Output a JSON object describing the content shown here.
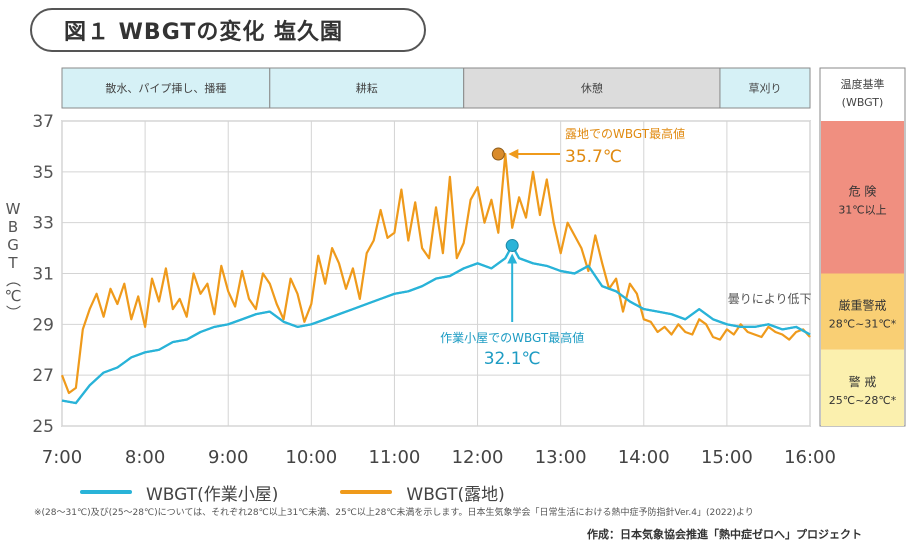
{
  "title": "図１ WBGTの変化 塩久園",
  "chart_data": {
    "type": "line",
    "title": "図１ WBGTの変化 塩久園",
    "ylabel": "WBGT（℃）",
    "xlabel": "",
    "xlim": [
      "7:00",
      "16:00"
    ],
    "ylim": [
      25,
      37
    ],
    "y_ticks": [
      25,
      27,
      29,
      31,
      33,
      35,
      37
    ],
    "x_ticks": [
      "7:00",
      "8:00",
      "9:00",
      "10:00",
      "11:00",
      "12:00",
      "13:00",
      "14:00",
      "15:00",
      "16:00"
    ],
    "grid": true,
    "legend_position": "bottom",
    "activities": [
      {
        "label": "散水、パイプ挿し、播種",
        "start": "7:00",
        "end": "9:30",
        "color": "#d6f1f6"
      },
      {
        "label": "耕耘",
        "start": "9:30",
        "end": "11:50",
        "color": "#d6f1f6"
      },
      {
        "label": "休憩",
        "start": "11:50",
        "end": "14:55",
        "color": "#dcdcdc"
      },
      {
        "label": "草刈り",
        "start": "14:55",
        "end": "16:00",
        "color": "#d6f1f6"
      }
    ],
    "criteria": {
      "header": "温度基準\n(WBGT)",
      "bands": [
        {
          "label": "危 険",
          "range": "31℃以上",
          "from": 31,
          "to": 37,
          "color": "#f08f80"
        },
        {
          "label": "厳重警戒",
          "range": "28℃~31℃*",
          "from": 28,
          "to": 31,
          "color": "#f9cf74"
        },
        {
          "label": "警 戒",
          "range": "25℃~28℃*",
          "from": 25,
          "to": 28,
          "color": "#fbf0ae"
        }
      ]
    },
    "series": [
      {
        "name": "WBGT(作業小屋)",
        "color": "#29b3d8",
        "x": [
          "7:00",
          "7:10",
          "7:20",
          "7:30",
          "7:40",
          "7:50",
          "8:00",
          "8:10",
          "8:20",
          "8:30",
          "8:40",
          "8:50",
          "9:00",
          "9:10",
          "9:20",
          "9:30",
          "9:40",
          "9:50",
          "10:00",
          "10:10",
          "10:20",
          "10:30",
          "10:40",
          "10:50",
          "11:00",
          "11:10",
          "11:20",
          "11:30",
          "11:40",
          "11:50",
          "12:00",
          "12:10",
          "12:20",
          "12:25",
          "12:30",
          "12:40",
          "12:50",
          "13:00",
          "13:10",
          "13:20",
          "13:30",
          "13:40",
          "13:50",
          "14:00",
          "14:10",
          "14:20",
          "14:30",
          "14:40",
          "14:50",
          "15:00",
          "15:10",
          "15:20",
          "15:30",
          "15:40",
          "15:50",
          "16:00"
        ],
        "values": [
          26.0,
          25.9,
          26.6,
          27.1,
          27.3,
          27.7,
          27.9,
          28.0,
          28.3,
          28.4,
          28.7,
          28.9,
          29.0,
          29.2,
          29.4,
          29.5,
          29.1,
          28.9,
          29.0,
          29.2,
          29.4,
          29.6,
          29.8,
          30.0,
          30.2,
          30.3,
          30.5,
          30.8,
          30.9,
          31.2,
          31.4,
          31.2,
          31.6,
          32.1,
          31.6,
          31.4,
          31.3,
          31.1,
          31.0,
          31.3,
          30.5,
          30.3,
          29.9,
          29.6,
          29.5,
          29.4,
          29.2,
          29.6,
          29.2,
          29.0,
          28.9,
          28.9,
          29.0,
          28.8,
          28.9,
          28.6
        ]
      },
      {
        "name": "WBGT(露地)",
        "color": "#ef9a1b",
        "x": [
          "7:00",
          "7:05",
          "7:10",
          "7:15",
          "7:20",
          "7:25",
          "7:30",
          "7:35",
          "7:40",
          "7:45",
          "7:50",
          "7:55",
          "8:00",
          "8:05",
          "8:10",
          "8:15",
          "8:20",
          "8:25",
          "8:30",
          "8:35",
          "8:40",
          "8:45",
          "8:50",
          "8:55",
          "9:00",
          "9:05",
          "9:10",
          "9:15",
          "9:20",
          "9:25",
          "9:30",
          "9:35",
          "9:40",
          "9:45",
          "9:50",
          "9:55",
          "10:00",
          "10:05",
          "10:10",
          "10:15",
          "10:20",
          "10:25",
          "10:30",
          "10:35",
          "10:40",
          "10:45",
          "10:50",
          "10:55",
          "11:00",
          "11:05",
          "11:10",
          "11:15",
          "11:20",
          "11:25",
          "11:30",
          "11:35",
          "11:40",
          "11:45",
          "11:50",
          "11:55",
          "12:00",
          "12:05",
          "12:10",
          "12:15",
          "12:20",
          "12:25",
          "12:30",
          "12:35",
          "12:40",
          "12:45",
          "12:50",
          "12:55",
          "13:00",
          "13:05",
          "13:10",
          "13:15",
          "13:20",
          "13:25",
          "13:30",
          "13:35",
          "13:40",
          "13:45",
          "13:50",
          "13:55",
          "14:00",
          "14:05",
          "14:10",
          "14:15",
          "14:20",
          "14:25",
          "14:30",
          "14:35",
          "14:40",
          "14:45",
          "14:50",
          "14:55",
          "15:00",
          "15:05",
          "15:10",
          "15:15",
          "15:20",
          "15:25",
          "15:30",
          "15:35",
          "15:40",
          "15:45",
          "15:50",
          "15:55",
          "16:00"
        ],
        "values": [
          27.0,
          26.3,
          26.5,
          28.8,
          29.6,
          30.2,
          29.3,
          30.4,
          29.8,
          30.6,
          29.2,
          30.1,
          28.9,
          30.8,
          29.9,
          31.2,
          29.6,
          30.0,
          29.3,
          31.0,
          30.2,
          30.6,
          29.4,
          31.3,
          30.3,
          29.7,
          31.1,
          30.0,
          29.6,
          31.0,
          30.6,
          29.8,
          29.2,
          30.8,
          30.2,
          29.1,
          29.8,
          31.7,
          30.6,
          32.0,
          31.4,
          30.4,
          31.2,
          30.0,
          31.8,
          32.3,
          33.5,
          32.4,
          32.6,
          34.3,
          32.3,
          33.8,
          32.0,
          31.6,
          33.6,
          31.8,
          34.8,
          31.6,
          32.2,
          33.9,
          34.4,
          33.0,
          33.9,
          32.6,
          35.7,
          32.8,
          34.0,
          33.2,
          35.0,
          33.3,
          34.7,
          33.0,
          31.8,
          33.0,
          32.5,
          32.0,
          31.1,
          32.5,
          31.4,
          30.4,
          30.8,
          29.5,
          30.6,
          30.2,
          29.2,
          29.1,
          28.7,
          28.9,
          28.6,
          29.0,
          28.7,
          28.6,
          29.2,
          29.0,
          28.5,
          28.4,
          28.8,
          28.6,
          29.0,
          28.7,
          28.6,
          28.5,
          28.9,
          28.7,
          28.6,
          28.4,
          28.7,
          28.8,
          28.5
        ]
      }
    ],
    "annotations": [
      {
        "text": "露地でのWBGT最高値",
        "value_text": "35.7℃",
        "x": "12:15",
        "y": 35.7
      },
      {
        "text": "作業小屋でのWBGT最高値",
        "value_text": "32.1℃",
        "x": "12:25",
        "y": 32.1
      },
      {
        "text": "曇りにより低下",
        "x": "15:15",
        "y": 30.0
      }
    ]
  },
  "legend": {
    "items": [
      {
        "label": "WBGT(作業小屋)",
        "color": "#29b3d8"
      },
      {
        "label": "WBGT(露地)",
        "color": "#ef9a1b"
      }
    ]
  },
  "footnote": "※(28～31℃)及び(25～28℃)については、それぞれ28℃以上31℃未満、25℃以上28℃未満を示します。日本生気象学会「日常生活における熱中症予防指針Ver.4」(2022)より",
  "credit": "作成：日本気象協会推進「熱中症ゼロへ」プロジェクト"
}
